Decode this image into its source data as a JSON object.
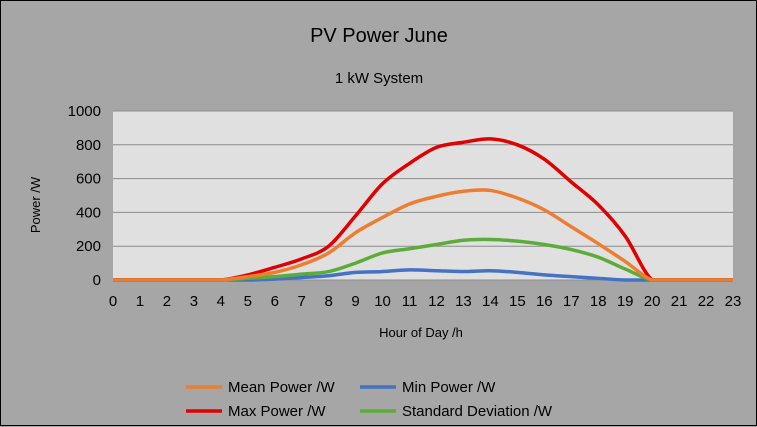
{
  "chart_data": {
    "type": "line",
    "title": "PV Power June",
    "subtitle": "1 kW System",
    "xlabel": "Hour of Day /h",
    "ylabel": "Power /W",
    "xlim": [
      0,
      23
    ],
    "ylim": [
      0,
      1000
    ],
    "x_ticks": [
      0,
      1,
      2,
      3,
      4,
      5,
      6,
      7,
      8,
      9,
      10,
      11,
      12,
      13,
      14,
      15,
      16,
      17,
      18,
      19,
      20,
      21,
      22,
      23
    ],
    "y_ticks": [
      0,
      200,
      400,
      600,
      800,
      1000
    ],
    "grid": true,
    "legend_position": "bottom",
    "x": [
      0,
      1,
      2,
      3,
      4,
      5,
      6,
      7,
      8,
      9,
      10,
      11,
      12,
      13,
      14,
      15,
      16,
      17,
      18,
      19,
      20,
      21,
      22,
      23
    ],
    "series": [
      {
        "name": "Mean Power /W",
        "color": "#ed7d31",
        "values": [
          0,
          0,
          0,
          0,
          0,
          20,
          45,
          90,
          160,
          280,
          370,
          450,
          495,
          525,
          530,
          485,
          415,
          315,
          215,
          110,
          0,
          0,
          0,
          0
        ]
      },
      {
        "name": "Min Power /W",
        "color": "#4472c4",
        "values": [
          0,
          0,
          0,
          0,
          0,
          0,
          5,
          15,
          25,
          45,
          50,
          60,
          55,
          50,
          55,
          45,
          30,
          20,
          10,
          0,
          0,
          0,
          0,
          0
        ]
      },
      {
        "name": "Max Power /W",
        "color": "#e00000",
        "values": [
          0,
          0,
          0,
          0,
          0,
          30,
          75,
          125,
          200,
          380,
          570,
          690,
          785,
          815,
          835,
          800,
          715,
          580,
          445,
          260,
          0,
          0,
          0,
          0
        ]
      },
      {
        "name": "Standard Deviation /W",
        "color": "#5cac3a",
        "values": [
          0,
          0,
          0,
          0,
          0,
          10,
          20,
          35,
          50,
          100,
          160,
          185,
          210,
          235,
          240,
          230,
          210,
          180,
          135,
          65,
          0,
          0,
          0,
          0
        ]
      }
    ]
  }
}
